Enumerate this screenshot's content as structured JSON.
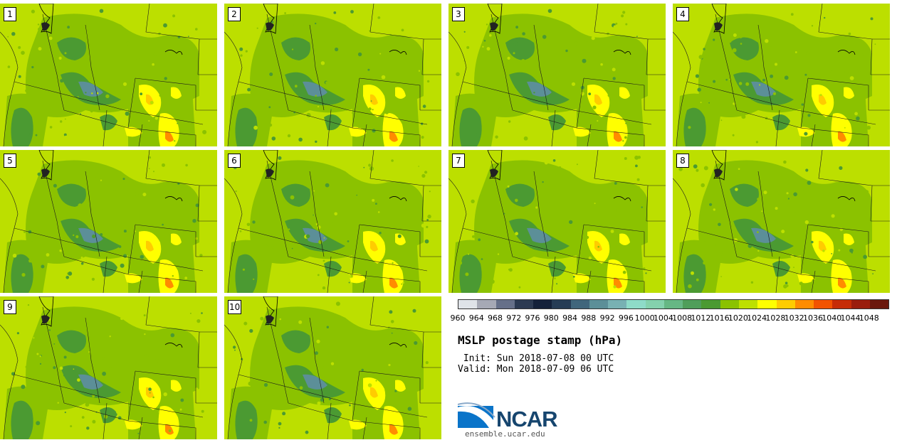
{
  "panels": [
    {
      "label": "1"
    },
    {
      "label": "2"
    },
    {
      "label": "3"
    },
    {
      "label": "4"
    },
    {
      "label": "5"
    },
    {
      "label": "6"
    },
    {
      "label": "7"
    },
    {
      "label": "8"
    },
    {
      "label": "9"
    },
    {
      "label": "10"
    }
  ],
  "colorbar": {
    "colors": [
      "#dfe3e8",
      "#a6a9b5",
      "#667089",
      "#2c3a52",
      "#14213a",
      "#263c55",
      "#40667c",
      "#5c8f98",
      "#78b1b3",
      "#8edbc8",
      "#84d1ad",
      "#66b784",
      "#4f9e5a",
      "#4b9a32",
      "#8bc200",
      "#bde000",
      "#ffff00",
      "#ffcc00",
      "#ff8c00",
      "#f25300",
      "#c62c07",
      "#9a1d0d",
      "#6b180d"
    ],
    "ticks": [
      "960",
      "964",
      "968",
      "972",
      "976",
      "980",
      "984",
      "988",
      "992",
      "996",
      "1000",
      "1004",
      "1008",
      "1012",
      "1016",
      "1020",
      "1024",
      "1028",
      "1032",
      "1036",
      "1040",
      "1044",
      "1048"
    ]
  },
  "map_colors": {
    "background": "#bcdf00",
    "mid": "#8bc200",
    "low": "#4b9a32",
    "lower": "#5c8f98",
    "high": "#ffff00",
    "higher": "#ffcc00",
    "highest": "#ff8c00"
  },
  "title": "MSLP postage stamp (hPa)",
  "init": " Init: Sun 2018-07-08 00 UTC",
  "valid": "Valid: Mon 2018-07-09 06 UTC",
  "logo": {
    "text": "NCAR",
    "site": "ensemble.ucar.edu"
  }
}
